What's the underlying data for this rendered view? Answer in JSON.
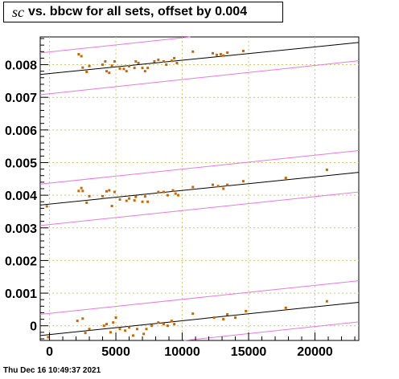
{
  "title": {
    "italic_part": "sc",
    "rest": "vs. bbcw for all sets, offset by 0.004"
  },
  "footer": {
    "timestamp": "Thu Dec 16 10:49:37 2021"
  },
  "colors": {
    "points": "#cc6600",
    "fit_line": "#000000",
    "band_line": "#ee77dd",
    "grid": "#cccc66"
  },
  "chart_data": {
    "type": "scatter",
    "title": "sc vs. bbcw for all sets, offset by 0.004",
    "xlim": [
      -700,
      23300
    ],
    "ylim": [
      -0.00045,
      0.00885
    ],
    "x_ticks": [
      0,
      5000,
      10000,
      15000,
      20000
    ],
    "x_tick_labels": [
      "0",
      "5000",
      "10000",
      "15000",
      "20000"
    ],
    "y_ticks": [
      0,
      0.001,
      0.002,
      0.003,
      0.004,
      0.005,
      0.006,
      0.007,
      0.008
    ],
    "y_tick_labels": [
      "0",
      "0.001",
      "0.002",
      "0.003",
      "0.004",
      "0.005",
      "0.006",
      "0.007",
      "0.008"
    ],
    "grid": true,
    "fit_lines": [
      {
        "x": [
          -700,
          23300
        ],
        "y": [
          0.0077,
          0.00868
        ]
      },
      {
        "x": [
          -700,
          23300
        ],
        "y": [
          0.0037,
          0.0047
        ]
      },
      {
        "x": [
          -700,
          23300
        ],
        "y": [
          -0.0003,
          0.00072
        ]
      }
    ],
    "band_lines": [
      {
        "x": [
          -700,
          23300
        ],
        "y": [
          0.00836,
          0.0094
        ]
      },
      {
        "x": [
          -700,
          23300
        ],
        "y": [
          0.00708,
          0.00812
        ]
      },
      {
        "x": [
          -700,
          23300
        ],
        "y": [
          0.00434,
          0.00537
        ]
      },
      {
        "x": [
          -700,
          23300
        ],
        "y": [
          0.00307,
          0.0041
        ]
      },
      {
        "x": [
          -700,
          23300
        ],
        "y": [
          0.00035,
          0.00138
        ]
      },
      {
        "x": [
          -700,
          23300
        ],
        "y": [
          -0.00092,
          0.00012
        ]
      }
    ],
    "series": [
      {
        "values": [
          [
            2200,
            0.00832
          ],
          [
            2400,
            0.00826
          ],
          [
            2500,
            0.00791
          ],
          [
            2800,
            0.00778
          ],
          [
            3000,
            0.00796
          ],
          [
            4000,
            0.008
          ],
          [
            4200,
            0.0081
          ],
          [
            4300,
            0.0078
          ],
          [
            4500,
            0.00775
          ],
          [
            4700,
            0.00797
          ],
          [
            4900,
            0.0081
          ],
          [
            5300,
            0.00788
          ],
          [
            5600,
            0.00787
          ],
          [
            5800,
            0.0078
          ],
          [
            6000,
            0.00795
          ],
          [
            6400,
            0.0079
          ],
          [
            6500,
            0.0081
          ],
          [
            6700,
            0.00805
          ],
          [
            7000,
            0.0079
          ],
          [
            7200,
            0.0078
          ],
          [
            7400,
            0.0079
          ],
          [
            7900,
            0.0081
          ],
          [
            8200,
            0.00815
          ],
          [
            8600,
            0.0081
          ],
          [
            8800,
            0.008
          ],
          [
            9200,
            0.00812
          ],
          [
            9400,
            0.0082
          ],
          [
            9600,
            0.00805
          ],
          [
            10800,
            0.0084
          ],
          [
            12300,
            0.00835
          ],
          [
            12600,
            0.0083
          ],
          [
            12900,
            0.00832
          ],
          [
            13100,
            0.00828
          ],
          [
            13400,
            0.00837
          ],
          [
            14600,
            0.00842
          ]
        ]
      },
      {
        "values": [
          [
            -200,
            0.00366
          ],
          [
            2200,
            0.00413
          ],
          [
            2400,
            0.00422
          ],
          [
            2500,
            0.00413
          ],
          [
            2800,
            0.00377
          ],
          [
            3000,
            0.00397
          ],
          [
            4000,
            0.00397
          ],
          [
            4300,
            0.00412
          ],
          [
            4500,
            0.00415
          ],
          [
            4700,
            0.00367
          ],
          [
            4900,
            0.0041
          ],
          [
            5300,
            0.00387
          ],
          [
            5800,
            0.00383
          ],
          [
            6000,
            0.0039
          ],
          [
            6400,
            0.00384
          ],
          [
            6500,
            0.00395
          ],
          [
            7000,
            0.0038
          ],
          [
            7200,
            0.00396
          ],
          [
            7400,
            0.0038
          ],
          [
            8200,
            0.0041
          ],
          [
            8600,
            0.0041
          ],
          [
            8900,
            0.004
          ],
          [
            9300,
            0.00415
          ],
          [
            9500,
            0.00405
          ],
          [
            9700,
            0.004
          ],
          [
            10800,
            0.00425
          ],
          [
            12300,
            0.00432
          ],
          [
            12700,
            0.00428
          ],
          [
            13100,
            0.0042
          ],
          [
            13400,
            0.00432
          ],
          [
            14600,
            0.00443
          ],
          [
            17800,
            0.00453
          ],
          [
            20900,
            0.00478
          ]
        ]
      },
      {
        "values": [
          [
            -100,
            -0.00035
          ],
          [
            2100,
            0.00015
          ],
          [
            2500,
            0.00022
          ],
          [
            2700,
            -0.00022
          ],
          [
            3000,
            -0.0001
          ],
          [
            4100,
            0.0
          ],
          [
            4300,
            5e-05
          ],
          [
            4600,
            -0.0002
          ],
          [
            4800,
            0.0001
          ],
          [
            5000,
            0.00025
          ],
          [
            5300,
            -0.0001
          ],
          [
            5700,
            -0.00015
          ],
          [
            6000,
            -5e-05
          ],
          [
            6300,
            -0.0003
          ],
          [
            6600,
            -0.0001
          ],
          [
            7100,
            -0.00025
          ],
          [
            7300,
            -0.0001
          ],
          [
            7700,
            0.0
          ],
          [
            8200,
            0.0001
          ],
          [
            8600,
            5e-05
          ],
          [
            8900,
            0.0
          ],
          [
            9200,
            0.00015
          ],
          [
            9400,
            5e-05
          ],
          [
            10800,
            0.00037
          ],
          [
            12400,
            0.00025
          ],
          [
            13100,
            0.0002
          ],
          [
            13400,
            0.00035
          ],
          [
            14000,
            0.00025
          ],
          [
            14800,
            0.00045
          ],
          [
            17800,
            0.00055
          ],
          [
            20900,
            0.00075
          ]
        ]
      }
    ]
  }
}
